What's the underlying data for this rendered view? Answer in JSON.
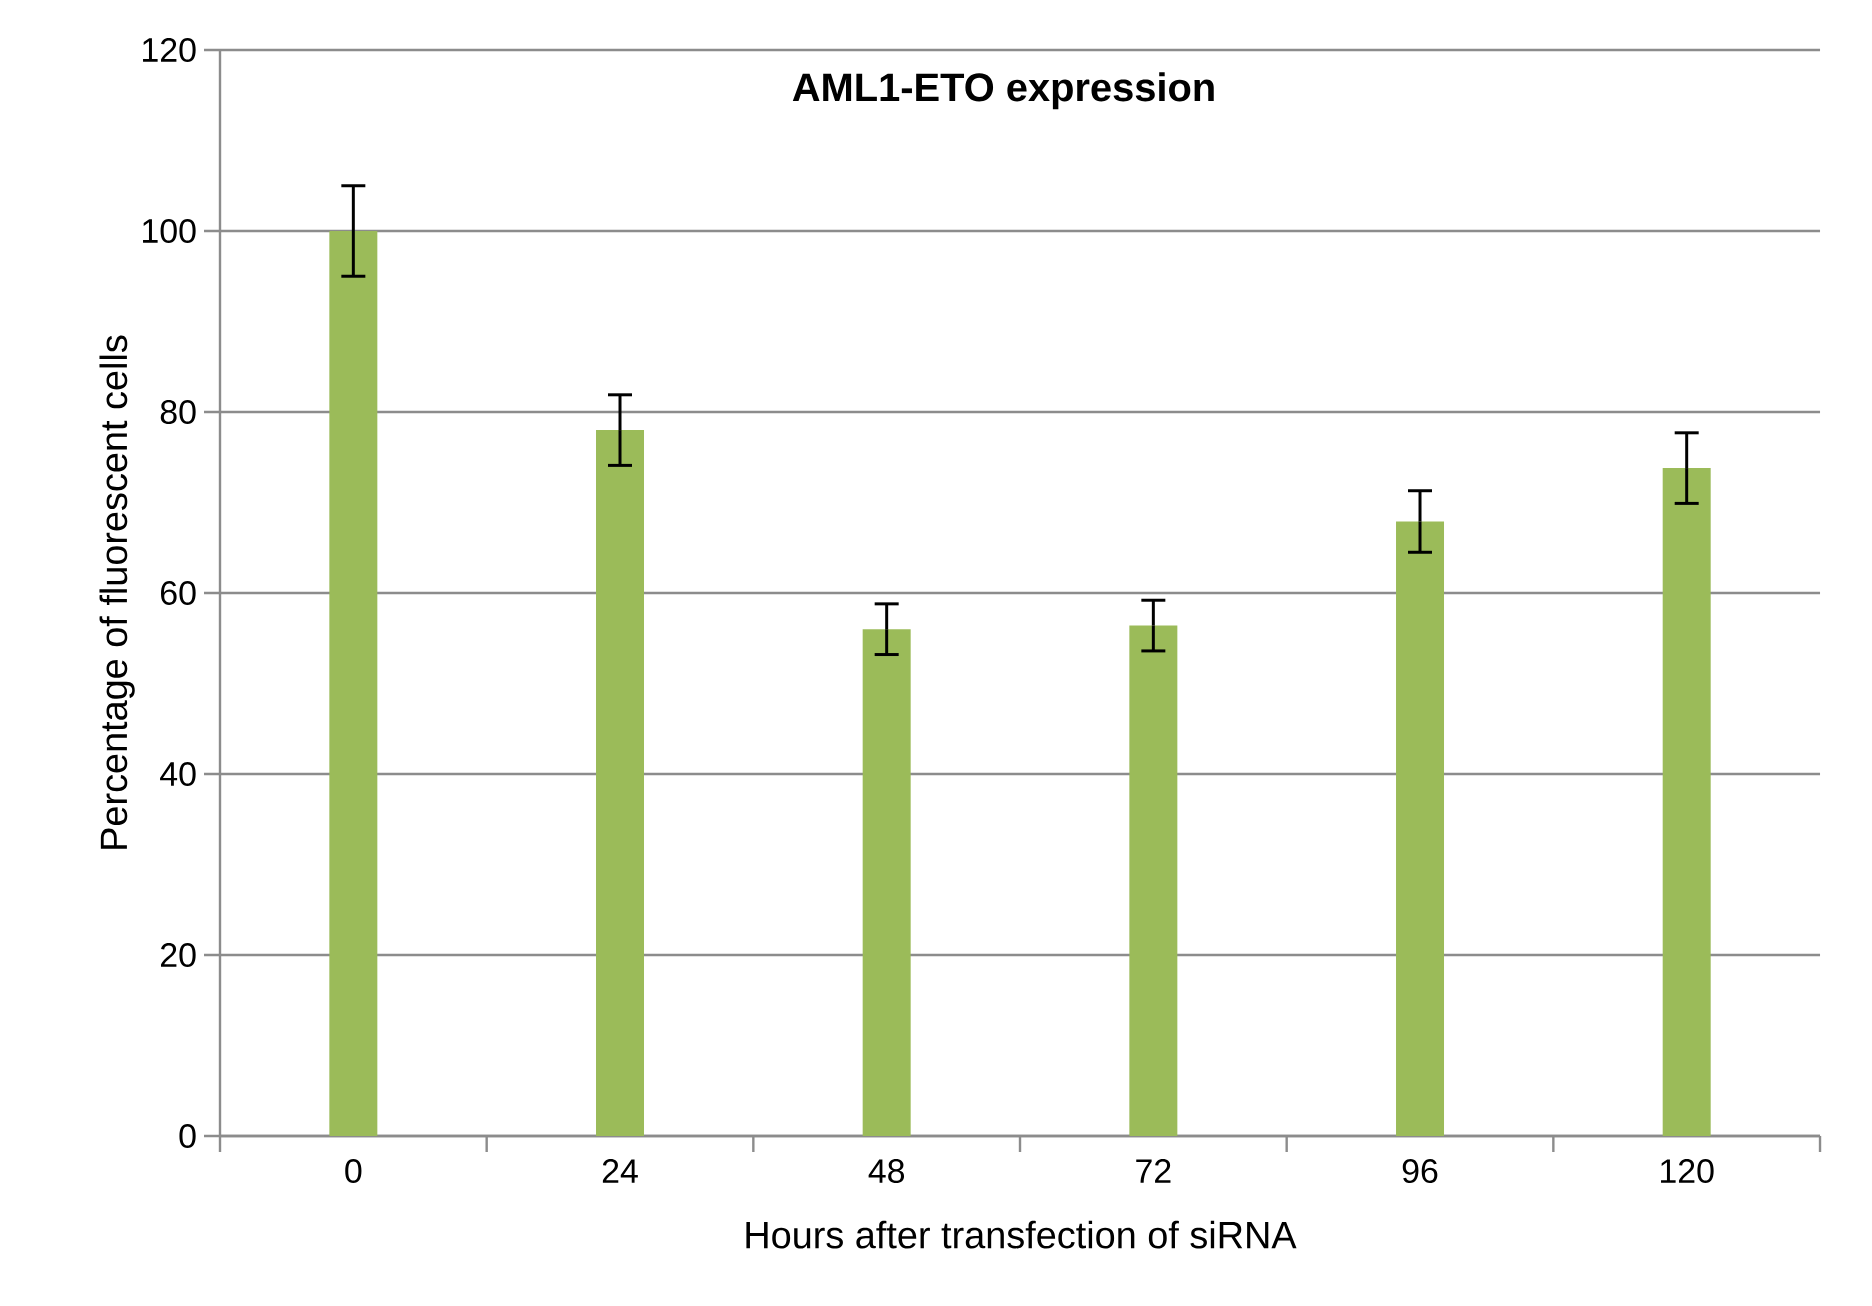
{
  "chart_data": {
    "type": "bar",
    "title": "AML1-ETO expression",
    "xlabel": "Hours after transfection of siRNA",
    "ylabel": "Percentage of fluorescent cells",
    "categories": [
      "0",
      "24",
      "48",
      "72",
      "96",
      "120"
    ],
    "values": [
      100,
      78,
      56,
      56.4,
      67.9,
      73.8
    ],
    "errors": [
      5,
      3.9,
      2.8,
      2.8,
      3.4,
      3.9
    ],
    "color": "#9bbb59",
    "ylim": [
      0,
      120
    ],
    "yticks": [
      0,
      20,
      40,
      60,
      80,
      100,
      120
    ],
    "grid": "y"
  }
}
